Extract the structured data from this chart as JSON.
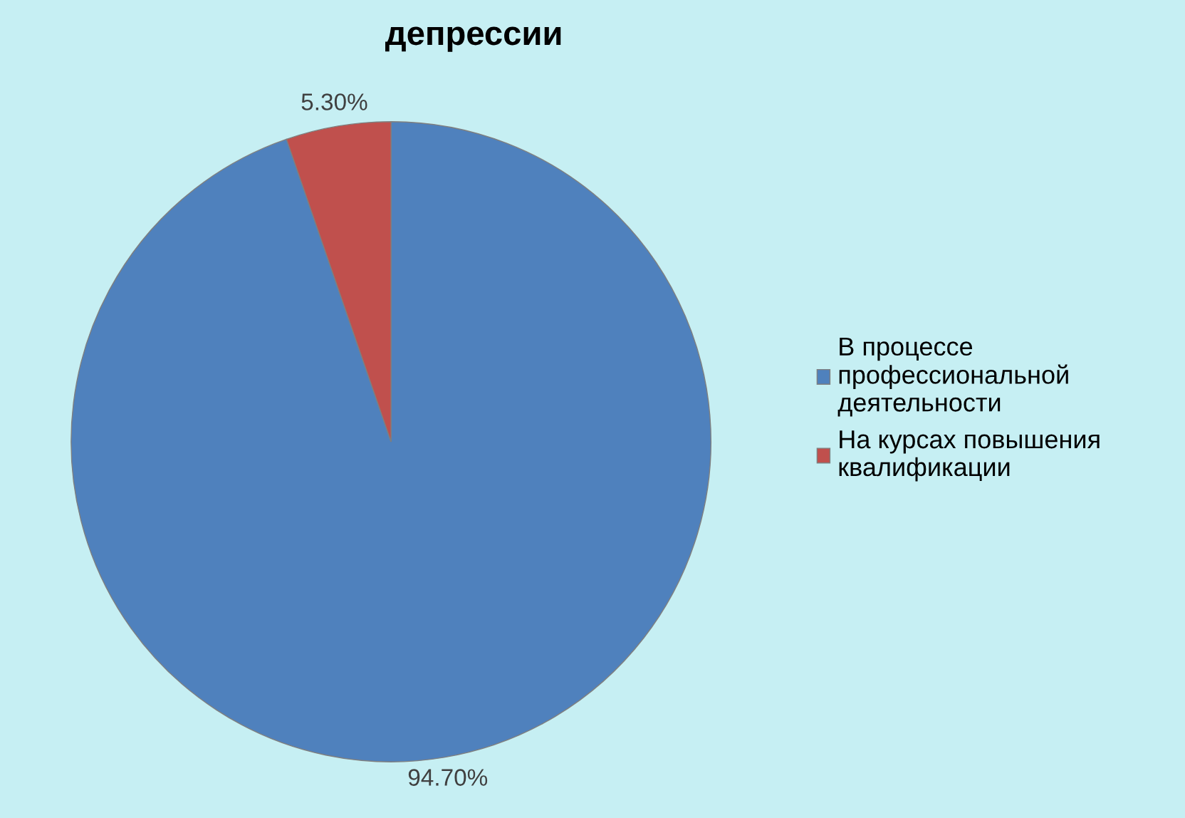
{
  "chart_data": {
    "type": "pie",
    "title": "депрессии",
    "categories": [
      "В процессе\nпрофессиональной\nдеятельности",
      "На курсах повышения\nквалификации"
    ],
    "values": [
      94.7,
      5.3
    ],
    "colors": [
      "#4f81bd",
      "#c0504d"
    ],
    "value_labels": [
      "94.70%",
      "5.30%"
    ],
    "legend": "right"
  }
}
